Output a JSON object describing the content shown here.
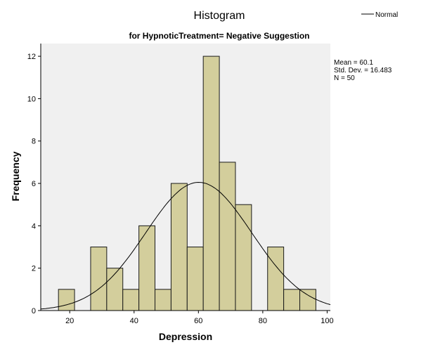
{
  "chart_data": {
    "type": "bar",
    "title": "Histogram",
    "subtitle": "for HypnoticTreatment= Negative Suggestion",
    "xlabel": "Depression",
    "ylabel": "Frequency",
    "xlim": [
      11,
      101
    ],
    "ylim": [
      0,
      12.6
    ],
    "x_ticks": [
      20,
      40,
      60,
      80,
      100
    ],
    "y_ticks": [
      0,
      2,
      4,
      6,
      8,
      10,
      12
    ],
    "bin_width": 5,
    "bins": [
      {
        "start": 16.5,
        "count": 1
      },
      {
        "start": 21.5,
        "count": 0
      },
      {
        "start": 26.5,
        "count": 3
      },
      {
        "start": 31.5,
        "count": 2
      },
      {
        "start": 36.5,
        "count": 1
      },
      {
        "start": 41.5,
        "count": 4
      },
      {
        "start": 46.5,
        "count": 1
      },
      {
        "start": 51.5,
        "count": 6
      },
      {
        "start": 56.5,
        "count": 3
      },
      {
        "start": 61.5,
        "count": 12
      },
      {
        "start": 66.5,
        "count": 7
      },
      {
        "start": 71.5,
        "count": 5
      },
      {
        "start": 76.5,
        "count": 0
      },
      {
        "start": 81.5,
        "count": 3
      },
      {
        "start": 86.5,
        "count": 1
      },
      {
        "start": 91.5,
        "count": 1
      }
    ],
    "normal_curve": {
      "mean": 60.1,
      "sd": 16.483,
      "n": 50
    },
    "stats_lines": [
      "Mean = 60.1",
      "Std. Dev. = 16.483",
      "N = 50"
    ],
    "legend": {
      "entries": [
        "Normal"
      ],
      "position": "top-right"
    },
    "grid": false,
    "colors": {
      "bar_fill": "#d3ce9c",
      "bar_stroke": "#1a1a1a",
      "plot_bg": "#f0f0f0",
      "curve": "#000000"
    }
  }
}
